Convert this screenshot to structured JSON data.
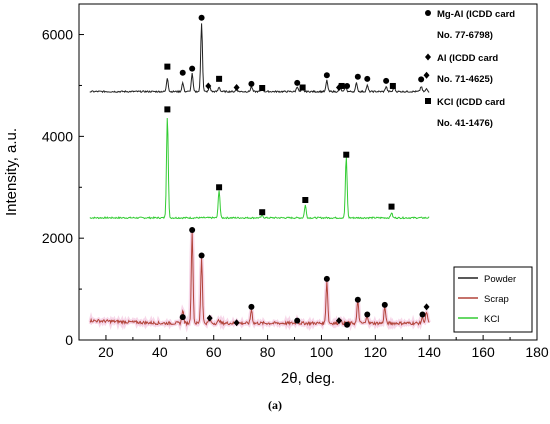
{
  "caption": "(a)",
  "chart_data": {
    "type": "line",
    "xlabel": "2θ, deg.",
    "ylabel": "Intensity, a.u.",
    "xlim": [
      10,
      180
    ],
    "ylim": [
      0,
      6600
    ],
    "x_ticks": [
      20,
      40,
      60,
      80,
      100,
      120,
      140,
      160,
      180
    ],
    "y_ticks": [
      0,
      2000,
      4000,
      6000
    ],
    "grid": false,
    "legend_position": "bottom-right",
    "series": [
      {
        "name": "Powder",
        "color": "#222222",
        "baseline": 4880,
        "peaks": [
          [
            42.8,
            5150
          ],
          [
            48.5,
            5050
          ],
          [
            52.0,
            5230
          ],
          [
            55.5,
            6230
          ],
          [
            58.5,
            4980
          ],
          [
            62.0,
            4970
          ],
          [
            68.5,
            4930
          ],
          [
            74.0,
            4980
          ],
          [
            78.0,
            4950
          ],
          [
            91.0,
            4980
          ],
          [
            93.0,
            4940
          ],
          [
            102.0,
            5100
          ],
          [
            107.0,
            4950
          ],
          [
            109.0,
            4980
          ],
          [
            113.0,
            5050
          ],
          [
            117.0,
            5000
          ],
          [
            124.0,
            4980
          ],
          [
            127.0,
            4960
          ],
          [
            137.0,
            4980
          ],
          [
            139.0,
            4930
          ]
        ]
      },
      {
        "name": "Scrap",
        "color": "#b2443a",
        "baseline": 330,
        "peaks": [
          [
            48.5,
            600
          ],
          [
            52.0,
            2100
          ],
          [
            55.5,
            1600
          ],
          [
            58.5,
            450
          ],
          [
            62.0,
            400
          ],
          [
            68.5,
            380
          ],
          [
            74.0,
            600
          ],
          [
            91.0,
            380
          ],
          [
            102.0,
            1150
          ],
          [
            107.0,
            400
          ],
          [
            109.5,
            350
          ],
          [
            113.5,
            770
          ],
          [
            117.0,
            480
          ],
          [
            123.5,
            650
          ],
          [
            137.5,
            460
          ],
          [
            139.0,
            550
          ]
        ]
      },
      {
        "name": "KCl",
        "color": "#33cc33",
        "baseline": 2400,
        "peaks": [
          [
            42.8,
            4400
          ],
          [
            62.0,
            2950
          ],
          [
            78.0,
            2450
          ],
          [
            94.0,
            2650
          ],
          [
            109.2,
            3600
          ],
          [
            126.0,
            2500
          ]
        ]
      }
    ],
    "markers": {
      "mg_al": {
        "symbol": "circle",
        "positions": [
          [
            48.5,
            5250
          ],
          [
            52.0,
            5330
          ],
          [
            55.5,
            6330
          ],
          [
            74.0,
            5030
          ],
          [
            91.0,
            5050
          ],
          [
            102.0,
            5200
          ],
          [
            109.5,
            4990
          ],
          [
            113.5,
            5170
          ],
          [
            117.0,
            5130
          ],
          [
            124.0,
            5090
          ],
          [
            137.0,
            5120
          ],
          [
            48.5,
            450
          ],
          [
            52.0,
            2160
          ],
          [
            55.5,
            1660
          ],
          [
            74.0,
            650
          ],
          [
            91.0,
            380
          ],
          [
            102.0,
            1200
          ],
          [
            109.5,
            300
          ],
          [
            113.5,
            790
          ],
          [
            117.0,
            500
          ],
          [
            123.5,
            690
          ],
          [
            137.5,
            500
          ]
        ]
      },
      "al": {
        "symbol": "diamond",
        "positions": [
          [
            58.0,
            4990
          ],
          [
            68.5,
            4960
          ],
          [
            106.5,
            4960
          ],
          [
            139.0,
            5200
          ],
          [
            58.5,
            430
          ],
          [
            68.5,
            340
          ],
          [
            106.5,
            380
          ],
          [
            139.0,
            650
          ]
        ]
      },
      "kcl": {
        "symbol": "square",
        "positions": [
          [
            42.8,
            5370
          ],
          [
            62.0,
            5130
          ],
          [
            78.0,
            4950
          ],
          [
            93.0,
            4960
          ],
          [
            107.5,
            4990
          ],
          [
            126.5,
            4990
          ],
          [
            42.8,
            4530
          ],
          [
            62.0,
            3000
          ],
          [
            78.0,
            2510
          ],
          [
            94.0,
            2750
          ],
          [
            109.2,
            3640
          ],
          [
            126.0,
            2620
          ]
        ]
      }
    },
    "marker_legend": [
      {
        "symbol": "circle",
        "lines": [
          "Mg-Al (ICDD card",
          "No. 77-6798)"
        ]
      },
      {
        "symbol": "diamond",
        "lines": [
          "Al (ICDD card",
          "No. 71-4625)"
        ]
      },
      {
        "symbol": "square",
        "lines": [
          "KCl (ICDD card",
          "No. 41-1476)"
        ]
      }
    ]
  }
}
